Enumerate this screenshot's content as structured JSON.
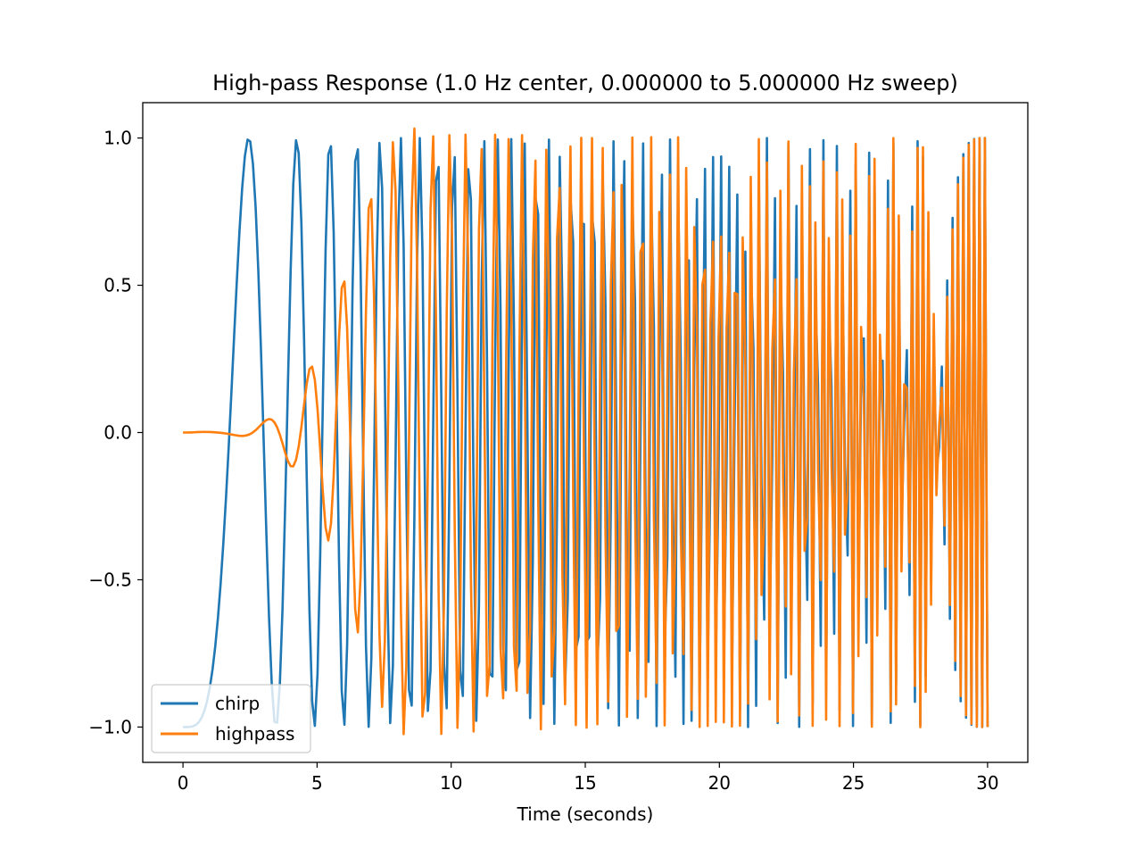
{
  "chart_data": {
    "type": "line",
    "title": "High-pass Response (1.0 Hz center, 0.000000 to 5.000000 Hz sweep)",
    "xlabel": "Time (seconds)",
    "ylabel": "",
    "xlim": [
      -1.5,
      31.5
    ],
    "ylim": [
      -1.12,
      1.12
    ],
    "grid": false,
    "legend_position": "lower-left",
    "x_ticks": [
      0,
      5,
      10,
      15,
      20,
      25,
      30
    ],
    "x_tick_labels": [
      "0",
      "5",
      "10",
      "15",
      "20",
      "25",
      "30"
    ],
    "y_ticks": [
      1.0,
      0.5,
      0.0,
      -0.5,
      -1.0
    ],
    "y_tick_labels": [
      "1.0",
      "0.5",
      "0.0",
      "−0.5",
      "−1.0"
    ],
    "signal": {
      "t_start": 0,
      "t_end": 30,
      "num_samples": 300,
      "sweep_start_hz": 0.0,
      "sweep_end_hz": 5.0,
      "center_hz": 1.0
    },
    "series": [
      {
        "name": "chirp",
        "color": "#1f77b4"
      },
      {
        "name": "highpass",
        "color": "#ff7f0e"
      }
    ]
  }
}
